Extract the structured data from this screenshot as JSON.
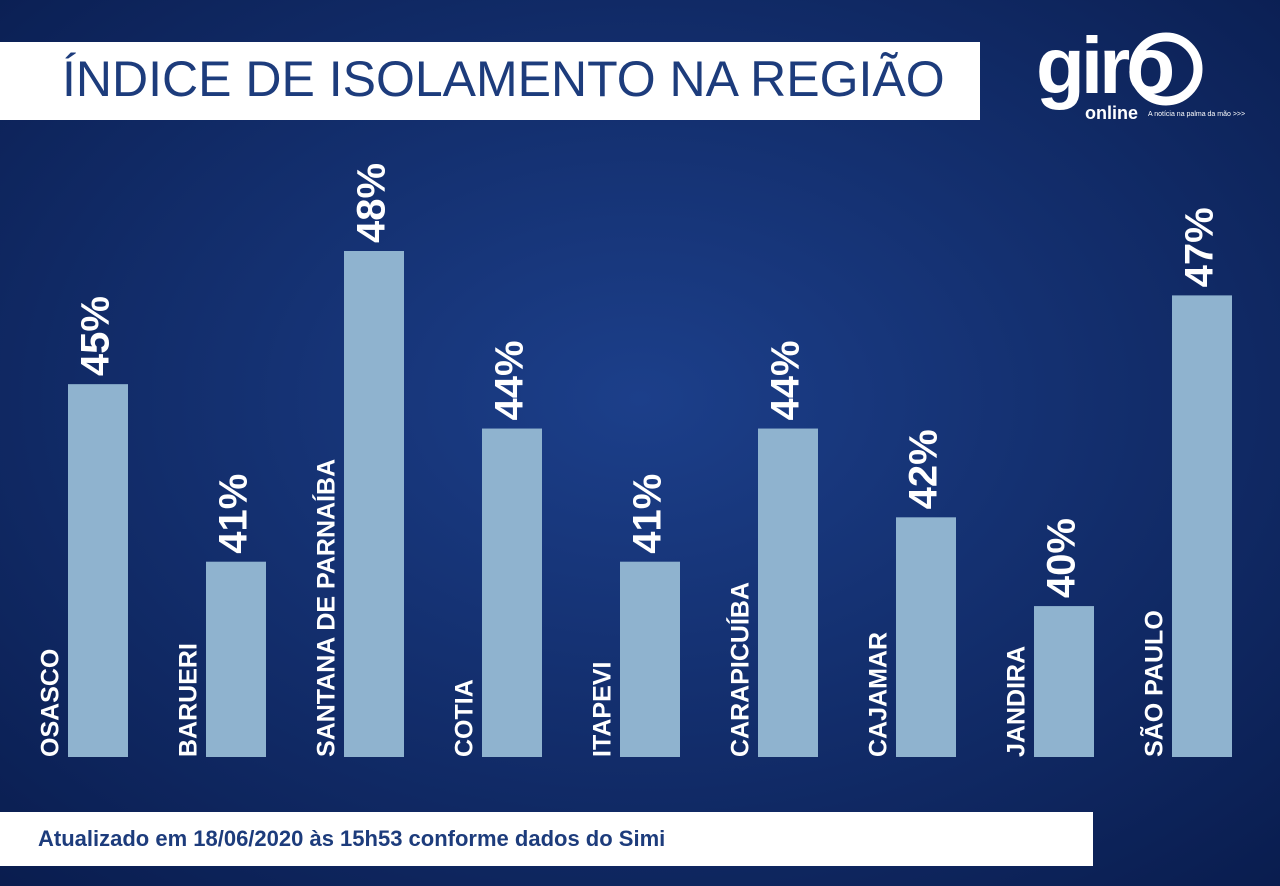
{
  "chart_data": {
    "type": "bar",
    "title": "ÍNDICE DE ISOLAMENTO NA REGIÃO",
    "footnote": "Atualizado em 18/06/2020 às 15h53 conforme dados do Simi",
    "logo": {
      "name": "giro",
      "sub": "online",
      "tagline": "A notícia na palma da mão >>>"
    },
    "categories": [
      "OSASCO",
      "BARUERI",
      "SANTANA DE PARNAÍBA",
      "COTIA",
      "ITAPEVI",
      "CARAPICUÍBA",
      "CAJAMAR",
      "JANDIRA",
      "SÃO PAULO"
    ],
    "values": [
      45,
      41,
      48,
      44,
      41,
      44,
      42,
      40,
      47
    ],
    "value_labels": [
      "45%",
      "41%",
      "48%",
      "44%",
      "41%",
      "44%",
      "42%",
      "40%",
      "47%"
    ],
    "color": "#8fb3cf",
    "ylim": [
      36.6,
      48
    ]
  }
}
